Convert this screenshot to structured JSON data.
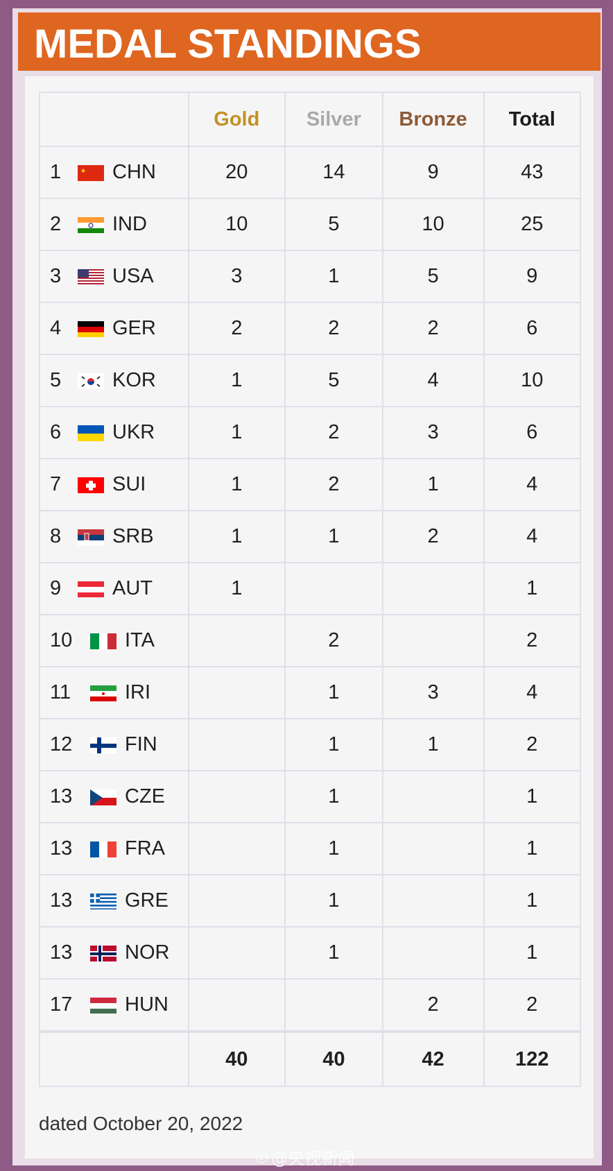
{
  "header": {
    "title": "MEDAL STANDINGS"
  },
  "table": {
    "columns": {
      "gold": "Gold",
      "silver": "Silver",
      "bronze": "Bronze",
      "total": "Total"
    },
    "rows": [
      {
        "rank": "1",
        "code": "CHN",
        "flag": "china-flag",
        "gold": "20",
        "silver": "14",
        "bronze": "9",
        "total": "43"
      },
      {
        "rank": "2",
        "code": "IND",
        "flag": "india-flag",
        "gold": "10",
        "silver": "5",
        "bronze": "10",
        "total": "25"
      },
      {
        "rank": "3",
        "code": "USA",
        "flag": "usa-flag",
        "gold": "3",
        "silver": "1",
        "bronze": "5",
        "total": "9"
      },
      {
        "rank": "4",
        "code": "GER",
        "flag": "germany-flag",
        "gold": "2",
        "silver": "2",
        "bronze": "2",
        "total": "6"
      },
      {
        "rank": "5",
        "code": "KOR",
        "flag": "korea-flag",
        "gold": "1",
        "silver": "5",
        "bronze": "4",
        "total": "10"
      },
      {
        "rank": "6",
        "code": "UKR",
        "flag": "ukraine-flag",
        "gold": "1",
        "silver": "2",
        "bronze": "3",
        "total": "6"
      },
      {
        "rank": "7",
        "code": "SUI",
        "flag": "switzerland-flag",
        "gold": "1",
        "silver": "2",
        "bronze": "1",
        "total": "4"
      },
      {
        "rank": "8",
        "code": "SRB",
        "flag": "serbia-flag",
        "gold": "1",
        "silver": "1",
        "bronze": "2",
        "total": "4"
      },
      {
        "rank": "9",
        "code": "AUT",
        "flag": "austria-flag",
        "gold": "1",
        "silver": "",
        "bronze": "",
        "total": "1"
      },
      {
        "rank": "10",
        "code": "ITA",
        "flag": "italy-flag",
        "gold": "",
        "silver": "2",
        "bronze": "",
        "total": "2"
      },
      {
        "rank": "11",
        "code": "IRI",
        "flag": "iran-flag",
        "gold": "",
        "silver": "1",
        "bronze": "3",
        "total": "4"
      },
      {
        "rank": "12",
        "code": "FIN",
        "flag": "finland-flag",
        "gold": "",
        "silver": "1",
        "bronze": "1",
        "total": "2"
      },
      {
        "rank": "13",
        "code": "CZE",
        "flag": "czech-flag",
        "gold": "",
        "silver": "1",
        "bronze": "",
        "total": "1"
      },
      {
        "rank": "13",
        "code": "FRA",
        "flag": "france-flag",
        "gold": "",
        "silver": "1",
        "bronze": "",
        "total": "1"
      },
      {
        "rank": "13",
        "code": "GRE",
        "flag": "greece-flag",
        "gold": "",
        "silver": "1",
        "bronze": "",
        "total": "1"
      },
      {
        "rank": "13",
        "code": "NOR",
        "flag": "norway-flag",
        "gold": "",
        "silver": "1",
        "bronze": "",
        "total": "1"
      },
      {
        "rank": "17",
        "code": "HUN",
        "flag": "hungary-flag",
        "gold": "",
        "silver": "",
        "bronze": "2",
        "total": "2"
      }
    ],
    "totals": {
      "gold": "40",
      "silver": "40",
      "bronze": "42",
      "total": "122"
    }
  },
  "footer": {
    "dated": "dated October 20, 2022"
  },
  "watermark": {
    "text": "@央视新闻"
  },
  "colors": {
    "header": "#df6620",
    "border": "#8e5a86",
    "gold": "#c39125",
    "silver": "#a9a9a9",
    "bronze": "#8c5a35"
  }
}
